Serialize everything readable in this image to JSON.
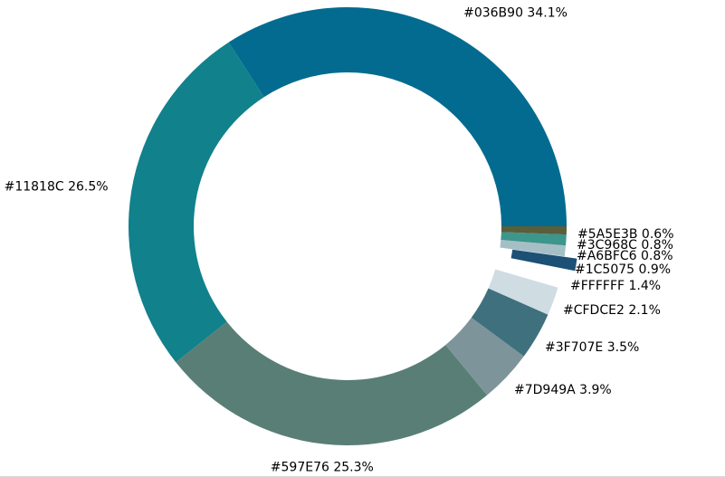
{
  "chart_data": {
    "type": "pie",
    "variant": "donut",
    "title": "",
    "legend": "none",
    "start": "right (0°), counter-clockwise",
    "slices": [
      {
        "label": "#036B90",
        "value": 34.1,
        "color": "#036B90",
        "text": "#036B90 34.1%",
        "exploded": false
      },
      {
        "label": "#11818C",
        "value": 26.5,
        "color": "#11818C",
        "text": "#11818C 26.5%",
        "exploded": false
      },
      {
        "label": "#597E76",
        "value": 25.3,
        "color": "#597E76",
        "text": "#597E76 25.3%",
        "exploded": false
      },
      {
        "label": "#7D949A",
        "value": 3.9,
        "color": "#7D949A",
        "text": "#7D949A 3.9%",
        "exploded": false
      },
      {
        "label": "#3F707E",
        "value": 3.5,
        "color": "#3F707E",
        "text": "#3F707E 3.5%",
        "exploded": false
      },
      {
        "label": "#CFDCE2",
        "value": 2.1,
        "color": "#CFDCE2",
        "text": "#CFDCE2 2.1%",
        "exploded": false
      },
      {
        "label": "#FFFFFF",
        "value": 1.4,
        "color": "#FFFFFF",
        "text": "#FFFFFF 1.4%",
        "exploded": false
      },
      {
        "label": "#1C5075",
        "value": 0.9,
        "color": "#1C5075",
        "text": "#1C5075 0.9%",
        "exploded": true
      },
      {
        "label": "#A6BFC6",
        "value": 0.8,
        "color": "#A6BFC6",
        "text": "#A6BFC6 0.8%",
        "exploded": false
      },
      {
        "label": "#3C968C",
        "value": 0.8,
        "color": "#3C968C",
        "text": "#3C968C 0.8%",
        "exploded": false
      },
      {
        "label": "#5A5E3B",
        "value": 0.6,
        "color": "#5A5E3B",
        "text": "#5A5E3B 0.6%",
        "exploded": false
      }
    ]
  }
}
